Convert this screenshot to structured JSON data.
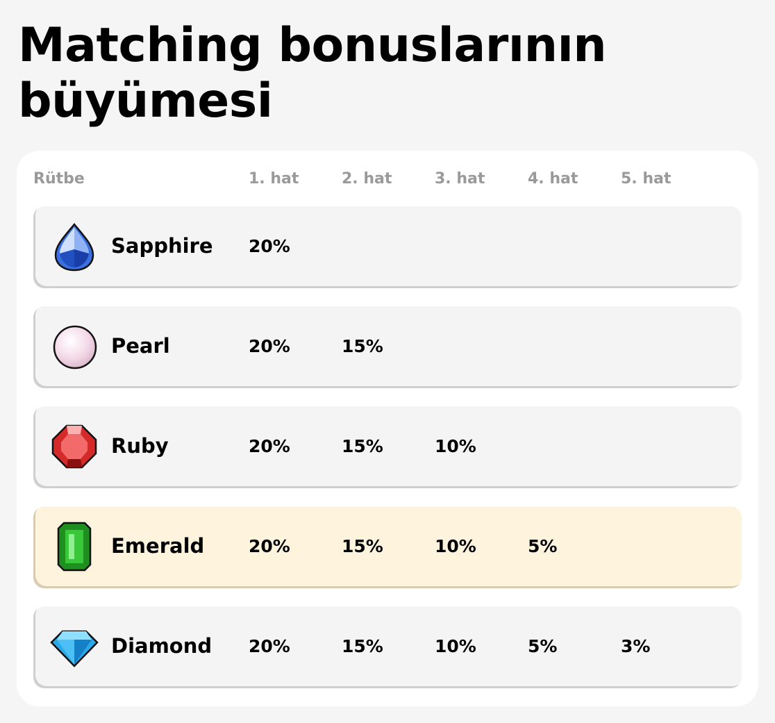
{
  "title": "Matching bonuslarının büyümesi",
  "headers": {
    "rank": "Rütbe",
    "cols": [
      "1. hat",
      "2. hat",
      "3. hat",
      "4. hat",
      "5. hat"
    ]
  },
  "rows": [
    {
      "name": "Sapphire",
      "icon": "sapphire-icon",
      "values": [
        "20%"
      ],
      "highlighted": false
    },
    {
      "name": "Pearl",
      "icon": "pearl-icon",
      "values": [
        "20%",
        "15%"
      ],
      "highlighted": false
    },
    {
      "name": "Ruby",
      "icon": "ruby-icon",
      "values": [
        "20%",
        "15%",
        "10%"
      ],
      "highlighted": false
    },
    {
      "name": "Emerald",
      "icon": "emerald-icon",
      "values": [
        "20%",
        "15%",
        "10%",
        "5%"
      ],
      "highlighted": true
    },
    {
      "name": "Diamond",
      "icon": "diamond-icon",
      "values": [
        "20%",
        "15%",
        "10%",
        "5%",
        "3%"
      ],
      "highlighted": false
    }
  ],
  "colors": {
    "highlight_row": "#fef3dc",
    "row": "#f4f4f4",
    "header_text": "#9a9a9a"
  }
}
